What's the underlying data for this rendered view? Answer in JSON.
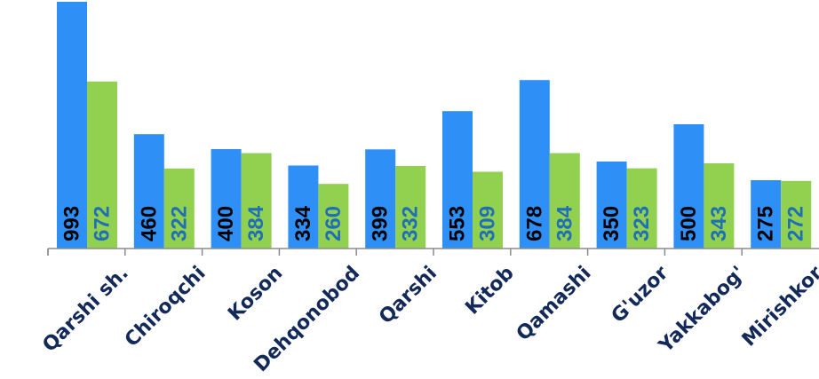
{
  "chart_data": {
    "type": "bar",
    "title": "",
    "xlabel": "",
    "ylabel": "",
    "ylim": [
      0,
      1000
    ],
    "grid": false,
    "legend": "none",
    "categories": [
      "Qarshi sh.",
      "Chiroqchi",
      "Koson",
      "Dehqonobod",
      "Qarshi",
      "Kitob",
      "Qamashi",
      "G'uzor",
      "Yakkabog'",
      "Mirishkor"
    ],
    "series": [
      {
        "values": [
          993,
          460,
          400,
          334,
          399,
          553,
          678,
          350,
          500,
          275
        ],
        "color": "#2e8ff7",
        "label_color": "#000000"
      },
      {
        "values": [
          672,
          322,
          384,
          260,
          332,
          309,
          384,
          323,
          343,
          272
        ],
        "color": "#92d050",
        "label_color": "#1f6fb5"
      }
    ]
  }
}
